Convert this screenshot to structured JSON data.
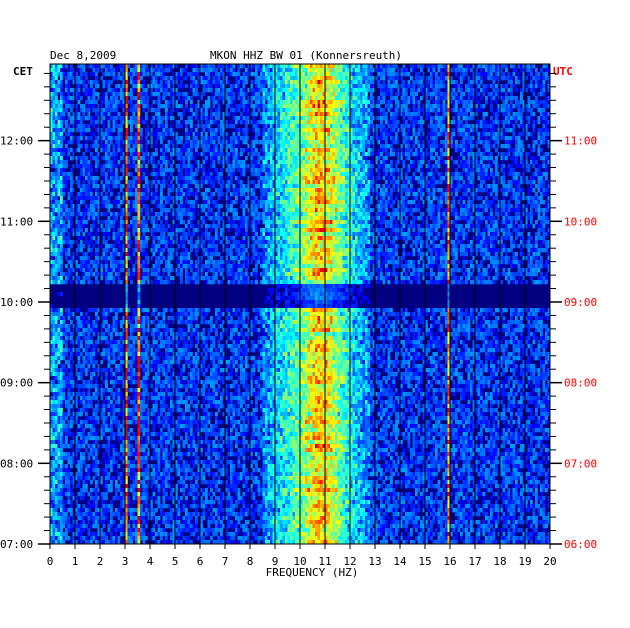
{
  "header": {
    "date": "Dec 8,2009",
    "station": "MKON HHZ BW 01 (Konnersreuth)"
  },
  "labels": {
    "left_zone": "CET",
    "right_zone": "UTC",
    "xlabel": "FREQUENCY (HZ)"
  },
  "colors": {
    "background": "#000080",
    "utc_text": "#ff0000",
    "grid": "#000000"
  },
  "chart_data": {
    "type": "heatmap",
    "title": "MKON HHZ BW 01 (Konnersreuth)",
    "xlabel": "FREQUENCY (HZ)",
    "xlim": [
      0,
      20
    ],
    "x_ticks": [
      "0",
      "1",
      "2",
      "3",
      "4",
      "5",
      "6",
      "7",
      "8",
      "9",
      "10",
      "11",
      "12",
      "13",
      "14",
      "15",
      "16",
      "17",
      "18",
      "19",
      "20"
    ],
    "y_left_label": "CET",
    "y_right_label": "UTC",
    "y_left_ticks": [
      "12:00",
      "11:00",
      "10:00",
      "09:00",
      "08:00",
      "07:00"
    ],
    "y_right_ticks": [
      "11:00",
      "10:00",
      "09:00",
      "08:00",
      "07:00",
      "06:00"
    ],
    "y_tick_hours_cet": [
      12,
      11,
      10,
      9,
      8,
      7
    ],
    "ylim_hours_cet": [
      7.0,
      12.95
    ],
    "grid": true,
    "colormap": "jet",
    "features": {
      "energy_band_hz": [
        8.5,
        12.8
      ],
      "band_peak_hz": 11,
      "narrow_lines_hz": [
        3.05,
        3.55,
        15.95
      ],
      "low_freq_edge_hz": [
        0,
        0.5
      ],
      "quiet_period_cet": [
        9.95,
        10.2
      ]
    }
  }
}
